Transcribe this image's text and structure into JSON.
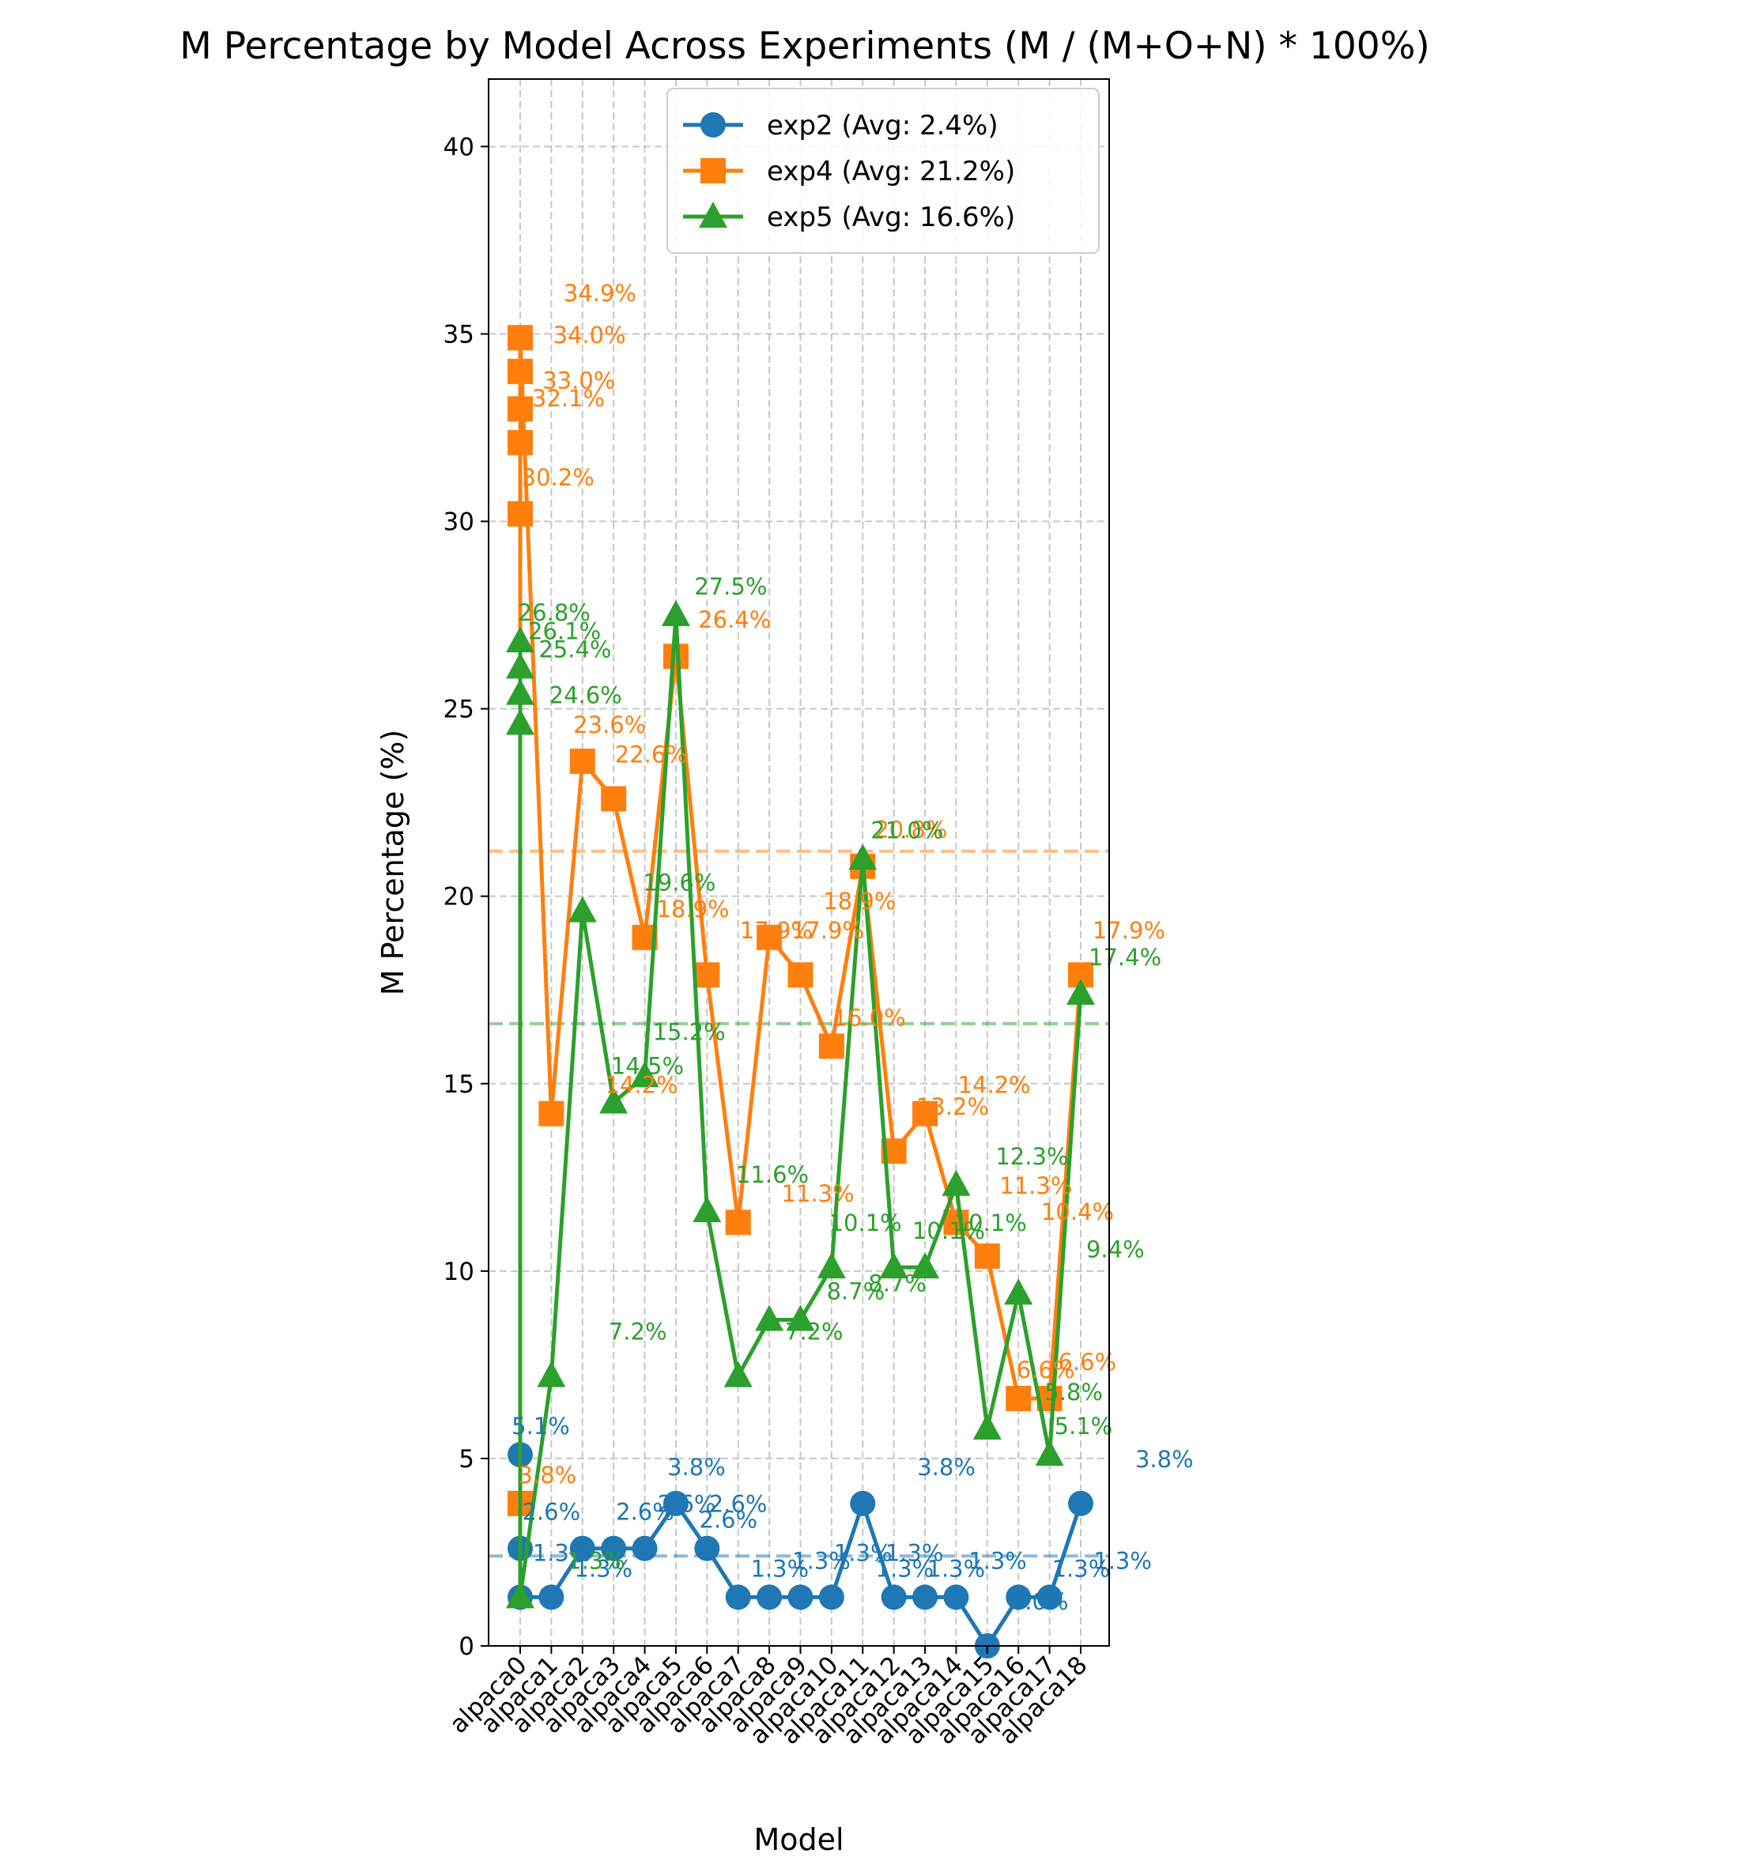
{
  "chart_data": {
    "type": "line",
    "title": "M Percentage by Model Across Experiments (M / (M+O+N) * 100%)",
    "xlabel": "Model",
    "ylabel": "M Percentage (%)",
    "ylim": [
      0,
      41.8
    ],
    "yticks": [
      0,
      5,
      10,
      15,
      20,
      25,
      30,
      35,
      40
    ],
    "grid": true,
    "legend_position": "upper center",
    "categories": [
      "alpaca0",
      "alpaca1",
      "alpaca2",
      "alpaca3",
      "alpaca4",
      "alpaca5",
      "alpaca6",
      "alpaca7",
      "alpaca8",
      "alpaca9",
      "alpaca10",
      "alpaca11",
      "alpaca12",
      "alpaca13",
      "alpaca14",
      "alpaca15",
      "alpaca16",
      "alpaca17",
      "alpaca18"
    ],
    "series": [
      {
        "name": "exp2 (Avg: 2.4%)",
        "average": 2.4,
        "color": "#1f77b4",
        "marker": "circle",
        "x": [
          0,
          0,
          0,
          1,
          2,
          3,
          4,
          5,
          6,
          7,
          8,
          9,
          10,
          11,
          12,
          13,
          14,
          15,
          16,
          17,
          18
        ],
        "values": [
          5.1,
          2.6,
          1.3,
          1.3,
          2.6,
          2.6,
          2.6,
          3.8,
          2.6,
          1.3,
          1.3,
          1.3,
          1.3,
          3.8,
          1.3,
          1.3,
          1.3,
          0.0,
          1.3,
          1.3,
          3.8
        ]
      },
      {
        "name": "exp4 (Avg: 21.2%)",
        "average": 21.2,
        "color": "#ff7f0e",
        "marker": "square",
        "x": [
          0,
          0,
          0,
          0,
          0,
          0,
          1,
          2,
          3,
          4,
          5,
          6,
          7,
          8,
          9,
          10,
          11,
          12,
          13,
          14,
          15,
          16,
          17,
          18
        ],
        "values": [
          3.8,
          30.2,
          32.1,
          33.0,
          34.0,
          34.9,
          14.2,
          23.6,
          22.6,
          18.9,
          26.4,
          17.9,
          11.3,
          18.9,
          17.9,
          16.0,
          20.8,
          13.2,
          14.2,
          11.3,
          10.4,
          6.6,
          6.6,
          17.9
        ]
      },
      {
        "name": "exp5 (Avg: 16.6%)",
        "average": 16.6,
        "color": "#2ca02c",
        "marker": "triangle",
        "x": [
          0,
          0,
          0,
          0,
          0,
          1,
          2,
          3,
          4,
          5,
          6,
          7,
          8,
          9,
          10,
          11,
          12,
          13,
          14,
          15,
          16,
          17,
          18
        ],
        "values": [
          26.8,
          26.1,
          25.4,
          24.6,
          1.3,
          7.2,
          19.6,
          14.5,
          15.2,
          27.5,
          11.6,
          7.2,
          8.7,
          8.7,
          10.1,
          21.0,
          10.1,
          10.1,
          12.3,
          5.8,
          9.4,
          5.1,
          17.4
        ]
      }
    ],
    "annotations": [
      {
        "text": "1.3%",
        "series": 0,
        "dx": 4,
        "dy": 17
      },
      {
        "text": "1.3%",
        "series": 0,
        "dx": 5,
        "dy": 14
      },
      {
        "text": "2.3%",
        "series": 0,
        "dx": 6,
        "dy": 14
      },
      {
        "text": "2.3%",
        "series": 0,
        "dx": 7,
        "dy": 14
      },
      {
        "text": "2.3%",
        "series": 0,
        "dx": 8,
        "dy": 14
      },
      {
        "text": "2.3%",
        "series": 0,
        "dx": 9,
        "dy": 14
      },
      {
        "text": "2.6%",
        "series": 0,
        "dx": 9.5,
        "dy": 19
      },
      {
        "text": "2.6%",
        "series": 0,
        "dx": 10.5,
        "dy": 19
      },
      {
        "text": "1.3%",
        "series": 0,
        "dx": 11,
        "dy": 14
      },
      {
        "text": "1.3%",
        "series": 0,
        "dx": 11.5,
        "dy": 14
      },
      {
        "text": "2.6%",
        "series": 0,
        "dx": 12.5,
        "dy": 19
      },
      {
        "text": "3.8%",
        "series": 0,
        "dx": 14.5,
        "dy": 25
      },
      {
        "text": "3.8%",
        "series": 0,
        "dx": 15.5,
        "dy": 25
      },
      {
        "text": "3.8%",
        "series": 0,
        "dx": 16.5,
        "dy": 25
      },
      {
        "text": "3.8%",
        "series": 0,
        "dx": 17.5,
        "dy": 25
      },
      {
        "text": "5.1%",
        "series": 0,
        "dx": 17.3,
        "dy": 31
      },
      {
        "text": "3.8%",
        "series": 0,
        "dx": 18.5,
        "dy": 25
      },
      {
        "text": "3.8%",
        "series": 0,
        "dx": 19.5,
        "dy": 25
      },
      {
        "text": "3.8%",
        "series": 0,
        "dx": 20.2,
        "dy": 25
      },
      {
        "text": "3.8%",
        "series": 0,
        "dx": 20.7,
        "dy": 25
      },
      {
        "text": "5.1%",
        "series": 0,
        "dx": 22,
        "dy": 31
      },
      {
        "text": "1.3%",
        "series": 0,
        "dx": 23,
        "dy": 12
      },
      {
        "text": "2.6%",
        "series": 0,
        "dx": 24,
        "dy": 19
      },
      {
        "text": "2.6%",
        "series": 0,
        "dx": 24.5,
        "dy": 19
      },
      {
        "text": "2.6%",
        "series": 0,
        "dx": 25,
        "dy": 19
      },
      {
        "text": "2.6%",
        "series": 0,
        "dx": 26,
        "dy": 19
      },
      {
        "text": "3.8%",
        "series": 0,
        "dx": 26,
        "dy": 25
      },
      {
        "text": "1.3%",
        "series": 0,
        "dx": 27,
        "dy": 12
      },
      {
        "text": "1.3%",
        "series": 0,
        "dx": 27.6,
        "dy": 12
      },
      {
        "text": "1.3%",
        "series": 0,
        "dx": 28.2,
        "dy": 12
      },
      {
        "text": "1.3%",
        "series": 0,
        "dx": 29,
        "dy": 12
      },
      {
        "text": "3.8%",
        "series": 0,
        "dx": 30,
        "dy": 25
      },
      {
        "text": "1.3%",
        "series": 0,
        "dx": 30.5,
        "dy": 12
      },
      {
        "text": "1.3%",
        "series": 0,
        "dx": 31,
        "dy": 12
      },
      {
        "text": "1.3%",
        "series": 0,
        "dx": 31.7,
        "dy": 12
      },
      {
        "text": "0.0%",
        "series": 0,
        "dx": 32,
        "dy": 6
      },
      {
        "text": "1.3%",
        "series": 0,
        "dx": 33,
        "dy": 12
      },
      {
        "text": "1.3%",
        "series": 0,
        "dx": 33.6,
        "dy": 12
      },
      {
        "text": "3.8%",
        "series": 0,
        "dx": 34.5,
        "dy": 25
      }
    ],
    "annotations_orange": [
      "3.8%",
      "30.2%",
      "32.1%",
      "33.0%",
      "34.0%",
      "34.9%",
      "14.2%",
      "23.6%",
      "22.6%",
      "18.9%",
      "26.4%",
      "17.9%",
      "11.3%",
      "18.9%",
      "17.9%",
      "16.0%",
      "20.8%",
      "13.2%",
      "14.2%",
      "11.3%",
      "10.4%",
      "6.6%",
      "6.6%",
      "17.9%"
    ],
    "annotations_green": [
      "26.8%",
      "26.1%",
      "25.4%",
      "24.6%",
      "1.3%",
      "7.2%",
      "19.6%",
      "14.5%",
      "15.2%",
      "27.5%",
      "11.6%",
      "7.2%",
      "8.7%",
      "8.7%",
      "10.1%",
      "21.0%",
      "10.1%",
      "10.1%",
      "12.3%",
      "5.8%",
      "9.4%",
      "5.1%",
      "17.4%"
    ]
  }
}
